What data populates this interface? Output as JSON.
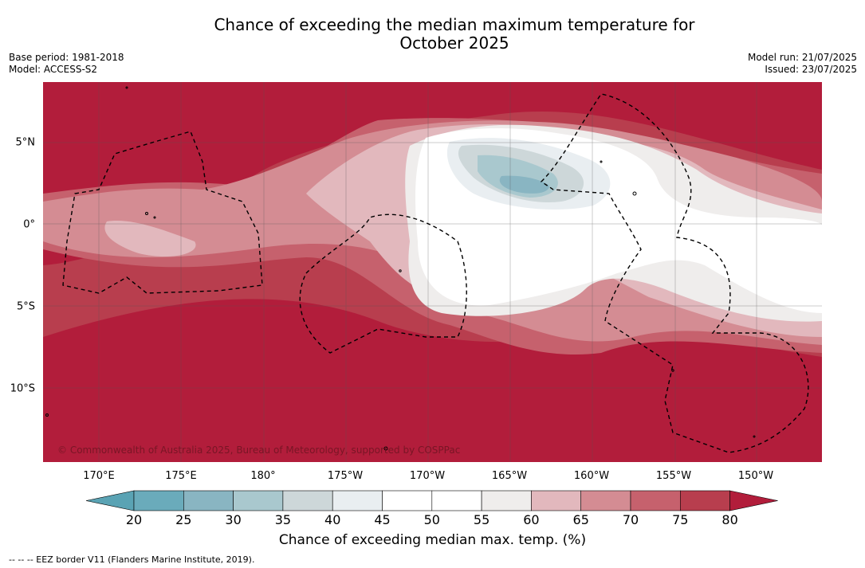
{
  "title_line1": "Chance of exceeding the median maximum temperature for",
  "title_line2": "October 2025",
  "meta_left": {
    "base_period": "Base period: 1981-2018",
    "model": "Model: ACCESS-S2"
  },
  "meta_right": {
    "model_run": "Model run: 21/07/2025",
    "issued": "Issued: 23/07/2025"
  },
  "copyright": "© Commonwealth of Australia 2025, Bureau of Meteorology, supported by COSPPac",
  "lat_labels": [
    "5°N",
    "0°",
    "5°S",
    "10°S"
  ],
  "lat_values": [
    5,
    0,
    -5,
    -10
  ],
  "lon_labels": [
    "170°E",
    "175°E",
    "180°",
    "175°W",
    "170°W",
    "165°W",
    "160°W",
    "155°W",
    "150°W"
  ],
  "lon_values": [
    170,
    175,
    180,
    185,
    190,
    195,
    200,
    205,
    210
  ],
  "colorbar": {
    "ticks": [
      "20",
      "25",
      "30",
      "35",
      "40",
      "45",
      "50",
      "55",
      "60",
      "65",
      "70",
      "75",
      "80"
    ],
    "colors": [
      "#5aa3b4",
      "#6aabbb",
      "#89b5c2",
      "#a9c8ce",
      "#cdd7d9",
      "#e9eef1",
      "#ffffff",
      "#ffffff",
      "#efedec",
      "#e2b8bd",
      "#d48c93",
      "#c6616d",
      "#b83e4e",
      "#b21d3b"
    ],
    "label": "Chance of exceeding median max. temp. (%)"
  },
  "footnote": "-- -- -- EEZ border V11 (Flanders Marine Institute, 2019)."
}
